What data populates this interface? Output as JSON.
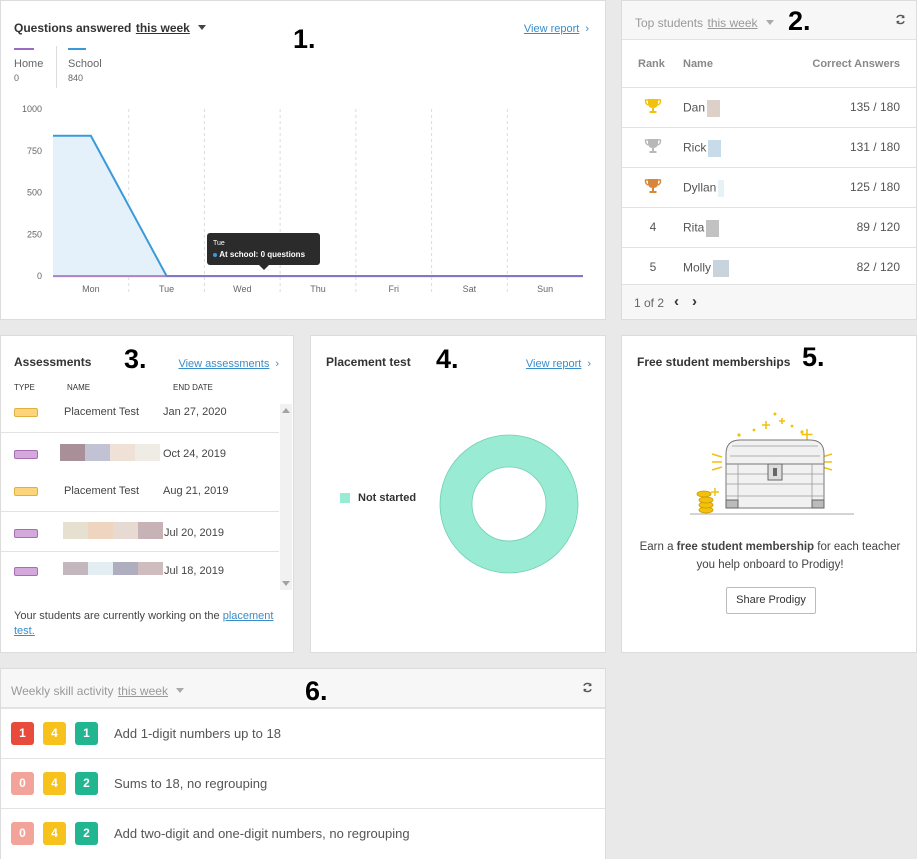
{
  "questions": {
    "title_prefix": "Questions answered",
    "period": "this week",
    "view_report": "View report",
    "legend": [
      {
        "name": "Home",
        "value": "0",
        "color": "#9b6bbf"
      },
      {
        "name": "School",
        "value": "840",
        "color": "#3a9ad9"
      }
    ],
    "tooltip_day": "Tue",
    "tooltip_text": "At school: 0 questions"
  },
  "chart_data": {
    "type": "line",
    "categories": [
      "Mon",
      "Tue",
      "Wed",
      "Thu",
      "Fri",
      "Sat",
      "Sun"
    ],
    "series": [
      {
        "name": "School",
        "values": [
          840,
          0,
          0,
          0,
          0,
          0,
          0
        ],
        "color": "#3a9ad9"
      },
      {
        "name": "Home",
        "values": [
          0,
          0,
          0,
          0,
          0,
          0,
          0
        ],
        "color": "#9b6bbf"
      }
    ],
    "ylim": [
      0,
      1000
    ],
    "yticks": [
      "1000",
      "750",
      "500",
      "250",
      "0"
    ],
    "title": "",
    "xlabel": "",
    "ylabel": ""
  },
  "top_students": {
    "title_prefix": "Top students",
    "period": "this week",
    "headers": {
      "rank": "Rank",
      "name": "Name",
      "correct": "Correct Answers"
    },
    "rows": [
      {
        "rank": "",
        "trophy": "gold",
        "name": "Dan",
        "score": "135 / 180",
        "blur": "#ddd0c8"
      },
      {
        "rank": "",
        "trophy": "silver",
        "name": "Rick",
        "score": "131 / 180",
        "blur": "#c8dbe8"
      },
      {
        "rank": "",
        "trophy": "bronze",
        "name": "Dyllan",
        "score": "125 / 180",
        "blur": "#e6f2f6"
      },
      {
        "rank": "4",
        "trophy": "",
        "name": "Rita",
        "score": "89 / 120",
        "blur": "#c2c2c2"
      },
      {
        "rank": "5",
        "trophy": "",
        "name": "Molly",
        "score": "82 / 120",
        "blur": "#c8d3dc"
      }
    ],
    "pagination": "1 of 2"
  },
  "assessments": {
    "title": "Assessments",
    "view_link": "View assessments",
    "headers": {
      "type": "TYPE",
      "name": "NAME",
      "end": "END DATE"
    },
    "rows": [
      {
        "type": "yellow",
        "name": "Placement Test",
        "date": "Jan 27, 2020"
      },
      {
        "type": "purple",
        "name": "",
        "date": "Oct 24, 2019",
        "blur": [
          "#a99098",
          "#c1c3d5",
          "#f0e1d6",
          "#efece6"
        ]
      },
      {
        "type": "yellow",
        "name": "Placement Test",
        "date": "Aug 21, 2019"
      },
      {
        "type": "purple",
        "name": "",
        "date": "Jul 20, 2019",
        "blur": [
          "#e5e0cf",
          "#efd4c0",
          "#e6dad3",
          "#c7b2b5"
        ]
      },
      {
        "type": "purple",
        "name": "",
        "date": "Jul 18, 2019",
        "blur": [
          "#c4b6bd",
          "#e2eef1",
          "#aeaebe",
          "#cebcbf"
        ]
      }
    ],
    "footer_text": "Your students are currently working on the",
    "footer_link": "placement test."
  },
  "placement": {
    "title": "Placement test",
    "view_report": "View report",
    "legend_label": "Not started",
    "color": "#99ebd3"
  },
  "memberships": {
    "title": "Free student memberships",
    "text_pre": "Earn a ",
    "text_bold": "free student membership",
    "text_post": " for each teacher you help onboard to Prodigy!",
    "button": "Share Prodigy"
  },
  "skills": {
    "title_prefix": "Weekly skill activity",
    "period": "this week",
    "rows": [
      {
        "badges": [
          {
            "v": "1",
            "c": "red"
          },
          {
            "v": "4",
            "c": "yellow"
          },
          {
            "v": "1",
            "c": "green"
          }
        ],
        "label": "Add 1-digit numbers up to 18"
      },
      {
        "badges": [
          {
            "v": "0",
            "c": "pink"
          },
          {
            "v": "4",
            "c": "yellow"
          },
          {
            "v": "2",
            "c": "green"
          }
        ],
        "label": "Sums to 18, no regrouping"
      },
      {
        "badges": [
          {
            "v": "0",
            "c": "pink"
          },
          {
            "v": "4",
            "c": "yellow"
          },
          {
            "v": "2",
            "c": "green"
          }
        ],
        "label": "Add two-digit and one-digit numbers, no regrouping"
      }
    ]
  },
  "annotations": [
    "1.",
    "2.",
    "3.",
    "4.",
    "5.",
    "6."
  ]
}
